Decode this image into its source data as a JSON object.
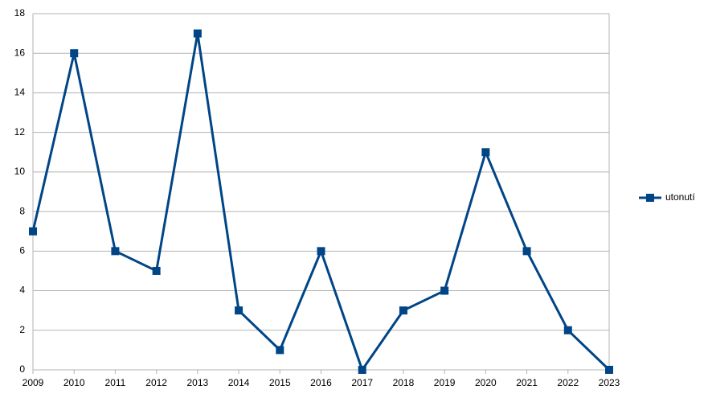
{
  "chart_data": {
    "type": "line",
    "categories": [
      "2009",
      "2010",
      "2011",
      "2012",
      "2013",
      "2014",
      "2015",
      "2016",
      "2017",
      "2018",
      "2019",
      "2020",
      "2021",
      "2022",
      "2023"
    ],
    "series": [
      {
        "name": "utonutí",
        "color": "#004586",
        "values": [
          7,
          16,
          6,
          5,
          17,
          3,
          1,
          6,
          0,
          3,
          4,
          11,
          6,
          2,
          0
        ]
      }
    ],
    "ylim": [
      0,
      18
    ],
    "yticks": [
      0,
      2,
      4,
      6,
      8,
      10,
      12,
      14,
      16,
      18
    ],
    "grid": true,
    "legend": "right"
  }
}
